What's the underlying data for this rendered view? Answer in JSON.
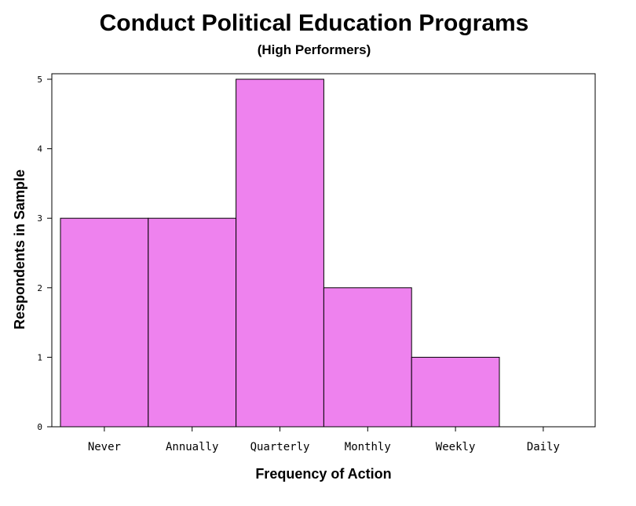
{
  "chart_data": {
    "type": "bar",
    "title": "Conduct Political Education Programs",
    "subtitle": "(High Performers)",
    "xlabel": "Frequency of Action",
    "ylabel": "Respondents in Sample",
    "categories": [
      "Never",
      "Annually",
      "Quarterly",
      "Monthly",
      "Weekly",
      "Daily"
    ],
    "values": [
      3,
      3,
      5,
      2,
      1,
      0
    ],
    "ylim": [
      0,
      5
    ],
    "yticks": [
      "0",
      "1",
      "2",
      "3",
      "4",
      "5"
    ],
    "grid": false,
    "bar_color": "#ee82ee",
    "edge_color": "#000000"
  }
}
